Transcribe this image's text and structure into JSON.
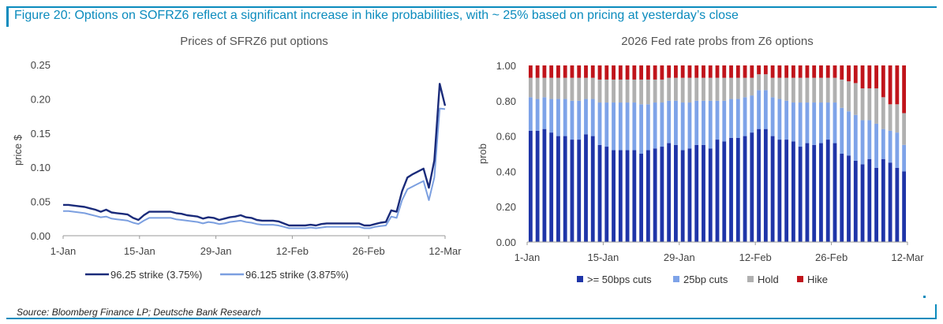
{
  "figure": {
    "title": "Figure 20: Options on SOFRZ6 reflect a significant increase in hike probabilities, with ~ 25% based on pricing at yesterday’s close",
    "source": "Source: Bloomberg Finance LP; Deutsche Bank Research"
  },
  "chart_data": [
    {
      "type": "line",
      "title": "Prices of SFRZ6 put options",
      "xlabel": "",
      "ylabel": "price $",
      "ylim": [
        0,
        0.25
      ],
      "yticks": [
        "0.00",
        "0.05",
        "0.10",
        "0.15",
        "0.20",
        "0.25"
      ],
      "xtick_labels": [
        "1-Jan",
        "15-Jan",
        "29-Jan",
        "12-Feb",
        "26-Feb",
        "12-Mar"
      ],
      "x_day_range": [
        1,
        72
      ],
      "legend_position": "bottom",
      "series": [
        {
          "name": "96.25 strike (3.75%)",
          "color": "#1a2b7a",
          "x": [
            1,
            2,
            3,
            5,
            6,
            7,
            8,
            9,
            10,
            11,
            12,
            13,
            14,
            15,
            16,
            17,
            18,
            19,
            20,
            21,
            22,
            23,
            24,
            25,
            26,
            27,
            28,
            29,
            30,
            31,
            32,
            33,
            34,
            35,
            36,
            37,
            38,
            39,
            40,
            41,
            42,
            43,
            44,
            45,
            46,
            47,
            48,
            49,
            50,
            51,
            52,
            53,
            54,
            55,
            56,
            57,
            58,
            59,
            60,
            61,
            62,
            63,
            64,
            65,
            66,
            67,
            68,
            69,
            70,
            71,
            72
          ],
          "values": [
            0.045,
            0.045,
            0.044,
            0.042,
            0.04,
            0.038,
            0.035,
            0.038,
            0.034,
            0.033,
            0.032,
            0.031,
            0.026,
            0.023,
            0.03,
            0.035,
            0.035,
            0.035,
            0.035,
            0.035,
            0.033,
            0.032,
            0.03,
            0.029,
            0.028,
            0.025,
            0.027,
            0.026,
            0.023,
            0.025,
            0.027,
            0.028,
            0.03,
            0.027,
            0.026,
            0.023,
            0.022,
            0.022,
            0.022,
            0.021,
            0.018,
            0.015,
            0.015,
            0.015,
            0.015,
            0.016,
            0.015,
            0.017,
            0.018,
            0.018,
            0.018,
            0.018,
            0.018,
            0.018,
            0.018,
            0.015,
            0.015,
            0.017,
            0.019,
            0.02,
            0.037,
            0.035,
            0.065,
            0.085,
            0.09,
            0.094,
            0.098,
            0.07,
            0.11,
            0.222,
            0.19
          ]
        },
        {
          "name": "96.125 strike (3.875%)",
          "color": "#7b9fe0",
          "x": [
            1,
            2,
            3,
            5,
            6,
            7,
            8,
            9,
            10,
            11,
            12,
            13,
            14,
            15,
            16,
            17,
            18,
            19,
            20,
            21,
            22,
            23,
            24,
            25,
            26,
            27,
            28,
            29,
            30,
            31,
            32,
            33,
            34,
            35,
            36,
            37,
            38,
            39,
            40,
            41,
            42,
            43,
            44,
            45,
            46,
            47,
            48,
            49,
            50,
            51,
            52,
            53,
            54,
            55,
            56,
            57,
            58,
            59,
            60,
            61,
            62,
            63,
            64,
            65,
            66,
            67,
            68,
            69,
            70,
            71,
            72
          ],
          "values": [
            0.036,
            0.036,
            0.035,
            0.033,
            0.031,
            0.029,
            0.027,
            0.028,
            0.025,
            0.024,
            0.023,
            0.022,
            0.019,
            0.017,
            0.022,
            0.026,
            0.026,
            0.026,
            0.026,
            0.026,
            0.024,
            0.023,
            0.022,
            0.021,
            0.02,
            0.018,
            0.02,
            0.019,
            0.017,
            0.018,
            0.02,
            0.021,
            0.022,
            0.02,
            0.019,
            0.017,
            0.016,
            0.016,
            0.016,
            0.015,
            0.013,
            0.011,
            0.011,
            0.011,
            0.011,
            0.012,
            0.011,
            0.012,
            0.013,
            0.013,
            0.013,
            0.013,
            0.013,
            0.013,
            0.013,
            0.011,
            0.011,
            0.013,
            0.014,
            0.015,
            0.028,
            0.026,
            0.052,
            0.068,
            0.072,
            0.076,
            0.08,
            0.052,
            0.085,
            0.186,
            0.185
          ]
        }
      ]
    },
    {
      "type": "bar",
      "stacked": true,
      "title": "2026 Fed rate probs from Z6 options",
      "xlabel": "",
      "ylabel": "prob",
      "ylim": [
        0,
        1
      ],
      "yticks": [
        "0.00",
        "0.20",
        "0.40",
        "0.60",
        "0.80",
        "1.00"
      ],
      "xtick_labels": [
        "1-Jan",
        "15-Jan",
        "29-Jan",
        "12-Feb",
        "26-Feb",
        "12-Mar"
      ],
      "legend_position": "bottom",
      "series": [
        {
          "name": ">= 50bps cuts",
          "color": "#1f35a8",
          "values": [
            0.63,
            0.63,
            0.64,
            0.62,
            0.6,
            0.6,
            0.58,
            0.58,
            0.61,
            0.6,
            0.55,
            0.54,
            0.52,
            0.52,
            0.52,
            0.52,
            0.5,
            0.52,
            0.53,
            0.54,
            0.56,
            0.55,
            0.52,
            0.53,
            0.55,
            0.55,
            0.53,
            0.58,
            0.57,
            0.59,
            0.59,
            0.6,
            0.62,
            0.64,
            0.64,
            0.6,
            0.58,
            0.58,
            0.57,
            0.54,
            0.56,
            0.55,
            0.56,
            0.58,
            0.56,
            0.5,
            0.49,
            0.46,
            0.44,
            0.47,
            0.42,
            0.47,
            0.45,
            0.42,
            0.4
          ]
        },
        {
          "name": "25bp cuts",
          "color": "#7ea3e8",
          "values": [
            0.19,
            0.18,
            0.18,
            0.19,
            0.21,
            0.21,
            0.22,
            0.22,
            0.2,
            0.21,
            0.24,
            0.25,
            0.27,
            0.27,
            0.27,
            0.27,
            0.28,
            0.26,
            0.26,
            0.25,
            0.24,
            0.25,
            0.27,
            0.26,
            0.25,
            0.25,
            0.27,
            0.22,
            0.23,
            0.22,
            0.22,
            0.22,
            0.21,
            0.22,
            0.22,
            0.22,
            0.23,
            0.22,
            0.22,
            0.25,
            0.23,
            0.24,
            0.23,
            0.21,
            0.23,
            0.26,
            0.25,
            0.26,
            0.25,
            0.22,
            0.25,
            0.17,
            0.18,
            0.2,
            0.15
          ]
        },
        {
          "name": "Hold",
          "color": "#b0b0b0",
          "values": [
            0.11,
            0.12,
            0.11,
            0.12,
            0.12,
            0.12,
            0.13,
            0.13,
            0.12,
            0.12,
            0.13,
            0.13,
            0.13,
            0.13,
            0.13,
            0.13,
            0.14,
            0.14,
            0.13,
            0.13,
            0.13,
            0.13,
            0.14,
            0.14,
            0.13,
            0.13,
            0.13,
            0.13,
            0.13,
            0.12,
            0.12,
            0.11,
            0.1,
            0.09,
            0.09,
            0.11,
            0.12,
            0.13,
            0.14,
            0.14,
            0.14,
            0.14,
            0.14,
            0.14,
            0.14,
            0.16,
            0.17,
            0.18,
            0.18,
            0.18,
            0.2,
            0.18,
            0.15,
            0.16,
            0.18
          ]
        },
        {
          "name": "Hike",
          "color": "#c0141b",
          "values": [
            0.07,
            0.07,
            0.07,
            0.07,
            0.07,
            0.07,
            0.07,
            0.07,
            0.07,
            0.07,
            0.08,
            0.08,
            0.08,
            0.08,
            0.08,
            0.08,
            0.08,
            0.08,
            0.08,
            0.08,
            0.07,
            0.07,
            0.07,
            0.07,
            0.07,
            0.07,
            0.07,
            0.07,
            0.07,
            0.07,
            0.07,
            0.07,
            0.07,
            0.05,
            0.05,
            0.07,
            0.07,
            0.07,
            0.07,
            0.07,
            0.07,
            0.07,
            0.07,
            0.07,
            0.07,
            0.08,
            0.09,
            0.1,
            0.13,
            0.13,
            0.13,
            0.18,
            0.22,
            0.22,
            0.27
          ]
        }
      ]
    }
  ]
}
